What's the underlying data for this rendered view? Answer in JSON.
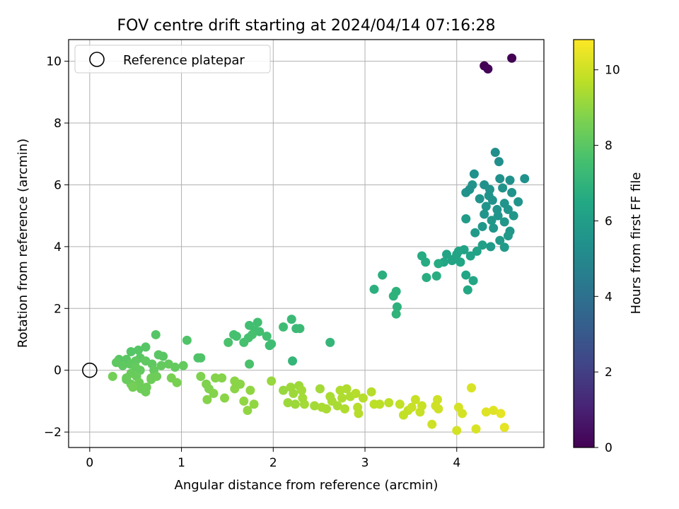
{
  "chart_data": {
    "type": "scatter",
    "title": "FOV centre drift starting at 2024/04/14 07:16:28",
    "xlabel": "Angular distance from reference (arcmin)",
    "ylabel": "Rotation from reference (arcmin)",
    "xlim": [
      -0.23,
      4.95
    ],
    "ylim": [
      -2.5,
      10.7
    ],
    "xticks": [
      0,
      1,
      2,
      3,
      4
    ],
    "yticks": [
      -2,
      0,
      2,
      4,
      6,
      8,
      10
    ],
    "grid": true,
    "legend": {
      "position": "top-left",
      "entries": [
        "Reference platepar"
      ]
    },
    "reference_point": {
      "x": 0,
      "y": 0,
      "label": "Reference platepar"
    },
    "colorbar": {
      "label": "Hours from first FF file",
      "range": [
        0,
        10.8
      ],
      "ticks": [
        0,
        2,
        4,
        6,
        8,
        10
      ],
      "colormap": "viridis"
    },
    "points": [
      [
        4.6,
        10.1,
        0.0
      ],
      [
        4.3,
        9.85,
        0.0
      ],
      [
        4.34,
        9.75,
        0.1
      ],
      [
        4.42,
        7.05,
        5.3
      ],
      [
        4.46,
        6.75,
        5.3
      ],
      [
        4.74,
        6.2,
        5.4
      ],
      [
        4.19,
        6.35,
        5.4
      ],
      [
        4.3,
        6.0,
        5.4
      ],
      [
        4.47,
        6.2,
        5.4
      ],
      [
        4.58,
        6.15,
        5.4
      ],
      [
        4.17,
        6.0,
        5.5
      ],
      [
        4.1,
        5.75,
        5.5
      ],
      [
        4.36,
        5.85,
        5.5
      ],
      [
        4.5,
        5.9,
        5.5
      ],
      [
        4.6,
        5.75,
        5.5
      ],
      [
        4.25,
        5.55,
        5.5
      ],
      [
        4.39,
        5.5,
        5.5
      ],
      [
        4.32,
        5.3,
        5.6
      ],
      [
        4.52,
        5.4,
        5.6
      ],
      [
        4.67,
        5.45,
        5.6
      ],
      [
        4.44,
        5.2,
        5.6
      ],
      [
        4.3,
        5.05,
        5.6
      ],
      [
        4.45,
        5.0,
        5.6
      ],
      [
        4.56,
        5.2,
        5.6
      ],
      [
        4.38,
        4.85,
        5.7
      ],
      [
        4.52,
        4.8,
        5.7
      ],
      [
        4.28,
        4.65,
        5.7
      ],
      [
        4.4,
        4.6,
        5.7
      ],
      [
        4.58,
        4.5,
        5.7
      ],
      [
        4.2,
        4.45,
        5.8
      ],
      [
        4.47,
        4.2,
        5.8
      ],
      [
        4.56,
        4.35,
        5.8
      ],
      [
        4.37,
        4.0,
        5.8
      ],
      [
        4.52,
        3.98,
        5.8
      ],
      [
        4.1,
        4.9,
        5.9
      ],
      [
        4.14,
        5.85,
        5.4
      ],
      [
        4.35,
        5.65,
        5.5
      ],
      [
        4.62,
        5.0,
        5.7
      ],
      [
        4.28,
        4.05,
        6.1
      ],
      [
        4.22,
        3.85,
        6.2
      ],
      [
        4.15,
        3.7,
        6.2
      ],
      [
        4.08,
        3.9,
        6.2
      ],
      [
        4.0,
        3.75,
        6.3
      ],
      [
        3.95,
        3.55,
        6.3
      ],
      [
        3.89,
        3.75,
        6.3
      ],
      [
        3.86,
        3.5,
        6.4
      ],
      [
        4.04,
        3.5,
        6.4
      ],
      [
        4.1,
        3.08,
        6.4
      ],
      [
        4.18,
        2.9,
        6.4
      ],
      [
        4.12,
        2.6,
        6.5
      ],
      [
        4.02,
        3.85,
        6.3
      ],
      [
        3.97,
        3.6,
        6.3
      ],
      [
        3.62,
        3.7,
        6.6
      ],
      [
        3.66,
        3.5,
        6.6
      ],
      [
        3.8,
        3.45,
        6.6
      ],
      [
        3.78,
        3.05,
        6.7
      ],
      [
        3.67,
        3.0,
        6.7
      ],
      [
        3.19,
        3.08,
        6.8
      ],
      [
        3.1,
        2.62,
        6.8
      ],
      [
        3.34,
        2.55,
        6.9
      ],
      [
        3.31,
        2.4,
        6.9
      ],
      [
        3.35,
        2.05,
        6.9
      ],
      [
        3.34,
        1.82,
        7.0
      ],
      [
        2.62,
        0.9,
        7.1
      ],
      [
        2.21,
        0.3,
        7.1
      ],
      [
        2.2,
        1.65,
        7.3
      ],
      [
        2.25,
        1.35,
        7.3
      ],
      [
        2.29,
        1.35,
        7.3
      ],
      [
        2.11,
        1.4,
        7.4
      ],
      [
        1.98,
        0.85,
        7.4
      ],
      [
        1.96,
        0.8,
        7.4
      ],
      [
        1.93,
        1.1,
        7.5
      ],
      [
        1.85,
        1.25,
        7.5
      ],
      [
        1.8,
        1.3,
        7.5
      ],
      [
        1.83,
        1.55,
        7.5
      ],
      [
        1.74,
        1.45,
        7.5
      ],
      [
        1.77,
        1.15,
        7.6
      ],
      [
        1.73,
        1.05,
        7.6
      ],
      [
        1.68,
        0.9,
        7.6
      ],
      [
        1.6,
        1.1,
        7.6
      ],
      [
        1.57,
        1.15,
        7.6
      ],
      [
        1.51,
        0.9,
        7.7
      ],
      [
        1.74,
        0.2,
        7.7
      ],
      [
        1.06,
        0.97,
        7.8
      ],
      [
        1.21,
        0.4,
        7.8
      ],
      [
        1.18,
        0.4,
        7.8
      ],
      [
        0.72,
        1.15,
        7.9
      ],
      [
        0.61,
        0.75,
        7.9
      ],
      [
        0.53,
        0.65,
        7.9
      ],
      [
        0.45,
        0.6,
        7.9
      ],
      [
        0.75,
        0.5,
        8.0
      ],
      [
        0.8,
        0.45,
        8.0
      ],
      [
        0.55,
        0.4,
        8.0
      ],
      [
        0.4,
        0.35,
        8.0
      ],
      [
        0.32,
        0.35,
        8.0
      ],
      [
        0.29,
        0.25,
        8.1
      ],
      [
        0.36,
        0.15,
        8.1
      ],
      [
        0.44,
        0.2,
        8.1
      ],
      [
        0.5,
        0.3,
        8.1
      ],
      [
        0.61,
        0.3,
        8.1
      ],
      [
        0.68,
        0.2,
        8.1
      ],
      [
        0.78,
        0.15,
        8.2
      ],
      [
        0.86,
        0.2,
        8.2
      ],
      [
        0.93,
        0.1,
        8.2
      ],
      [
        1.02,
        0.15,
        8.2
      ],
      [
        0.7,
        0.0,
        8.2
      ],
      [
        0.55,
        0.0,
        8.2
      ],
      [
        0.45,
        -0.1,
        8.3
      ],
      [
        0.51,
        -0.2,
        8.3
      ],
      [
        0.4,
        -0.25,
        8.3
      ],
      [
        0.45,
        -0.45,
        8.4
      ],
      [
        0.54,
        -0.4,
        8.4
      ],
      [
        0.62,
        -0.55,
        8.4
      ],
      [
        0.56,
        -0.6,
        8.4
      ],
      [
        0.61,
        -0.7,
        8.4
      ],
      [
        0.67,
        -0.3,
        8.4
      ],
      [
        0.73,
        -0.2,
        8.4
      ],
      [
        0.25,
        -0.2,
        8.5
      ],
      [
        0.47,
        -0.55,
        8.5
      ],
      [
        0.89,
        -0.25,
        8.6
      ],
      [
        0.95,
        -0.4,
        8.6
      ],
      [
        0.67,
        -0.25,
        8.4
      ],
      [
        0.5,
        0.1,
        8.2
      ],
      [
        0.4,
        -0.3,
        8.3
      ],
      [
        1.21,
        -0.2,
        8.7
      ],
      [
        1.27,
        -0.45,
        8.7
      ],
      [
        1.3,
        -0.6,
        8.7
      ],
      [
        1.35,
        -0.75,
        8.8
      ],
      [
        1.28,
        -0.95,
        8.8
      ],
      [
        1.37,
        -0.25,
        8.8
      ],
      [
        1.44,
        -0.25,
        8.8
      ],
      [
        1.47,
        -0.9,
        8.9
      ],
      [
        1.58,
        -0.35,
        8.9
      ],
      [
        1.58,
        -0.6,
        8.9
      ],
      [
        1.64,
        -0.45,
        8.9
      ],
      [
        1.68,
        -1.0,
        9.0
      ],
      [
        1.72,
        -1.3,
        9.0
      ],
      [
        1.75,
        -0.65,
        9.0
      ],
      [
        1.79,
        -1.1,
        9.0
      ],
      [
        1.98,
        -0.35,
        9.1
      ],
      [
        2.11,
        -0.65,
        9.1
      ],
      [
        2.16,
        -1.05,
        9.2
      ],
      [
        2.19,
        -0.55,
        9.2
      ],
      [
        2.22,
        -0.75,
        9.2
      ],
      [
        2.24,
        -1.1,
        9.2
      ],
      [
        2.28,
        -0.5,
        9.2
      ],
      [
        2.31,
        -0.65,
        9.3
      ],
      [
        2.32,
        -0.9,
        9.3
      ],
      [
        2.34,
        -1.1,
        9.3
      ],
      [
        2.45,
        -1.15,
        9.3
      ],
      [
        2.51,
        -0.6,
        9.3
      ],
      [
        2.53,
        -1.2,
        9.4
      ],
      [
        2.58,
        -1.25,
        9.4
      ],
      [
        2.62,
        -0.85,
        9.4
      ],
      [
        2.64,
        -1.0,
        9.4
      ],
      [
        2.7,
        -1.15,
        9.4
      ],
      [
        2.73,
        -0.65,
        9.5
      ],
      [
        2.75,
        -0.9,
        9.5
      ],
      [
        2.78,
        -1.25,
        9.5
      ],
      [
        2.8,
        -0.6,
        9.5
      ],
      [
        2.84,
        -0.85,
        9.5
      ],
      [
        2.9,
        -0.75,
        9.6
      ],
      [
        2.92,
        -1.2,
        9.6
      ],
      [
        2.93,
        -1.4,
        9.6
      ],
      [
        2.98,
        -0.9,
        9.6
      ],
      [
        3.07,
        -0.7,
        9.6
      ],
      [
        3.1,
        -1.1,
        9.7
      ],
      [
        3.16,
        -1.1,
        9.7
      ],
      [
        3.26,
        -1.05,
        9.7
      ],
      [
        3.38,
        -1.1,
        9.8
      ],
      [
        3.42,
        -1.45,
        9.8
      ],
      [
        3.47,
        -1.3,
        9.8
      ],
      [
        3.51,
        -1.2,
        9.9
      ],
      [
        3.55,
        -0.95,
        9.9
      ],
      [
        3.6,
        -1.35,
        9.9
      ],
      [
        3.62,
        -1.15,
        9.9
      ],
      [
        3.73,
        -1.75,
        10.0
      ],
      [
        3.77,
        -1.15,
        10.0
      ],
      [
        3.79,
        -0.95,
        10.0
      ],
      [
        3.8,
        -1.25,
        10.0
      ],
      [
        4.0,
        -1.95,
        10.1
      ],
      [
        4.02,
        -1.2,
        10.1
      ],
      [
        4.06,
        -1.4,
        10.1
      ],
      [
        4.16,
        -0.57,
        10.2
      ],
      [
        4.21,
        -1.9,
        10.2
      ],
      [
        4.32,
        -1.35,
        10.3
      ],
      [
        4.4,
        -1.3,
        10.3
      ],
      [
        4.48,
        -1.4,
        10.4
      ],
      [
        4.52,
        -1.85,
        10.4
      ]
    ]
  }
}
